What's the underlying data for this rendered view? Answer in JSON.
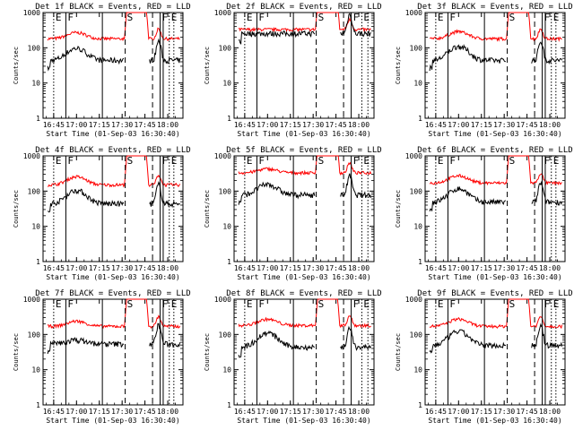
{
  "figure": {
    "ylabel": "Counts/sec",
    "xlabel": "Start Time (01-Sep-03 16:30:40)",
    "time_ticks": [
      "16:45",
      "17:00",
      "17:15",
      "17:30",
      "17:45",
      "18:00"
    ],
    "y_ticks": [
      "1",
      "10",
      "100",
      "1000"
    ],
    "marker_letters": {
      "E": "E",
      "F": "F",
      "S": "S"
    },
    "colors": {
      "events": "#000000",
      "lld": "#ff0000"
    }
  },
  "chart_data": [
    {
      "type": "line",
      "title": "Det 1f BLACK = Events, RED = LLD",
      "xlabel": "Start Time (01-Sep-03 16:30:40)",
      "ylabel": "Counts/sec",
      "yscale": "log",
      "ylim": [
        1,
        1000
      ],
      "xlim_min": [
        8,
        100
      ],
      "lld_base": 180,
      "evt_base": 45,
      "lld_hump": 1.5,
      "evt_hump": 2.2,
      "marker_set": "A",
      "series": [
        {
          "name": "Events",
          "color": "#000000"
        },
        {
          "name": "LLD",
          "color": "#ff0000"
        }
      ]
    },
    {
      "type": "line",
      "title": "Det 2f BLACK = Events, RED = LLD",
      "xlabel": "Start Time (01-Sep-03 16:30:40)",
      "ylabel": "Counts/sec",
      "yscale": "log",
      "ylim": [
        1,
        1000
      ],
      "xlim_min": [
        8,
        100
      ],
      "lld_base": 330,
      "evt_base": 260,
      "lld_hump": 1.0,
      "evt_hump": 1.0,
      "marker_set": "B",
      "series": [
        {
          "name": "Events",
          "color": "#000000"
        },
        {
          "name": "LLD",
          "color": "#ff0000"
        }
      ]
    },
    {
      "type": "line",
      "title": "Det 3f BLACK = Events, RED = LLD",
      "xlabel": "Start Time (01-Sep-03 16:30:40)",
      "ylabel": "Counts/sec",
      "yscale": "log",
      "ylim": [
        1,
        1000
      ],
      "xlim_min": [
        8,
        100
      ],
      "lld_base": 180,
      "evt_base": 45,
      "lld_hump": 1.6,
      "evt_hump": 2.5,
      "marker_set": "A",
      "series": [
        {
          "name": "Events",
          "color": "#000000"
        },
        {
          "name": "LLD",
          "color": "#ff0000"
        }
      ]
    },
    {
      "type": "line",
      "title": "Det 4f BLACK = Events, RED = LLD",
      "xlabel": "Start Time (01-Sep-03 16:30:40)",
      "ylabel": "Counts/sec",
      "yscale": "log",
      "ylim": [
        1,
        1000
      ],
      "xlim_min": [
        8,
        100
      ],
      "lld_base": 150,
      "evt_base": 45,
      "lld_hump": 1.7,
      "evt_hump": 2.4,
      "marker_set": "A",
      "series": [
        {
          "name": "Events",
          "color": "#000000"
        },
        {
          "name": "LLD",
          "color": "#ff0000"
        }
      ]
    },
    {
      "type": "line",
      "title": "Det 5f BLACK = Events, RED = LLD",
      "xlabel": "Start Time (01-Sep-03 16:30:40)",
      "ylabel": "Counts/sec",
      "yscale": "log",
      "ylim": [
        1,
        1000
      ],
      "xlim_min": [
        8,
        100
      ],
      "lld_base": 330,
      "evt_base": 80,
      "lld_hump": 1.3,
      "evt_hump": 2.0,
      "marker_set": "B",
      "series": [
        {
          "name": "Events",
          "color": "#000000"
        },
        {
          "name": "LLD",
          "color": "#ff0000"
        }
      ]
    },
    {
      "type": "line",
      "title": "Det 6f BLACK = Events, RED = LLD",
      "xlabel": "Start Time (01-Sep-03 16:30:40)",
      "ylabel": "Counts/sec",
      "yscale": "log",
      "ylim": [
        1,
        1000
      ],
      "xlim_min": [
        8,
        100
      ],
      "lld_base": 170,
      "evt_base": 50,
      "lld_hump": 1.6,
      "evt_hump": 2.4,
      "marker_set": "A",
      "series": [
        {
          "name": "Events",
          "color": "#000000"
        },
        {
          "name": "LLD",
          "color": "#ff0000"
        }
      ]
    },
    {
      "type": "line",
      "title": "Det 7f BLACK = Events, RED = LLD",
      "xlabel": "Start Time (01-Sep-03 16:30:40)",
      "ylabel": "Counts/sec",
      "yscale": "log",
      "ylim": [
        1,
        1000
      ],
      "xlim_min": [
        8,
        100
      ],
      "lld_base": 170,
      "evt_base": 55,
      "lld_hump": 1.4,
      "evt_hump": 1.3,
      "marker_set": "A",
      "series": [
        {
          "name": "Events",
          "color": "#000000"
        },
        {
          "name": "LLD",
          "color": "#ff0000"
        }
      ]
    },
    {
      "type": "line",
      "title": "Det 8f BLACK = Events, RED = LLD",
      "xlabel": "Start Time (01-Sep-03 16:30:40)",
      "ylabel": "Counts/sec",
      "yscale": "log",
      "ylim": [
        1,
        1000
      ],
      "xlim_min": [
        8,
        100
      ],
      "lld_base": 180,
      "evt_base": 45,
      "lld_hump": 1.5,
      "evt_hump": 2.5,
      "marker_set": "B",
      "series": [
        {
          "name": "Events",
          "color": "#000000"
        },
        {
          "name": "LLD",
          "color": "#ff0000"
        }
      ]
    },
    {
      "type": "line",
      "title": "Det 9f BLACK = Events, RED = LLD",
      "xlabel": "Start Time (01-Sep-03 16:30:40)",
      "ylabel": "Counts/sec",
      "yscale": "log",
      "ylim": [
        1,
        1000
      ],
      "xlim_min": [
        8,
        100
      ],
      "lld_base": 170,
      "evt_base": 50,
      "lld_hump": 1.6,
      "evt_hump": 2.5,
      "marker_set": "A",
      "series": [
        {
          "name": "Events",
          "color": "#000000"
        },
        {
          "name": "LLD",
          "color": "#ff0000"
        }
      ]
    }
  ],
  "markers": {
    "A": [
      {
        "t": 15,
        "style": "dotted",
        "label": "E"
      },
      {
        "t": 23,
        "style": "solid",
        "label": "F"
      },
      {
        "t": 47,
        "style": "solid",
        "label": ""
      },
      {
        "t": 62,
        "style": "dashed",
        "label": "S"
      },
      {
        "t": 80,
        "style": "dashed",
        "label": ""
      },
      {
        "t": 85,
        "style": "solid",
        "label": "F"
      },
      {
        "t": 87,
        "style": "solid",
        "label": ""
      },
      {
        "t": 91,
        "style": "dotted",
        "label": "E"
      },
      {
        "t": 94,
        "style": "dotted",
        "label": ""
      }
    ],
    "B": [
      {
        "t": 15,
        "style": "dotted",
        "label": "E"
      },
      {
        "t": 23,
        "style": "solid",
        "label": "F"
      },
      {
        "t": 47,
        "style": "solid",
        "label": ""
      },
      {
        "t": 62,
        "style": "dashed",
        "label": "S"
      },
      {
        "t": 80,
        "style": "dashed",
        "label": ""
      },
      {
        "t": 85,
        "style": "solid",
        "label": "F"
      },
      {
        "t": 92,
        "style": "dotted",
        "label": "E"
      },
      {
        "t": 96,
        "style": "dotted",
        "label": ""
      }
    ]
  }
}
